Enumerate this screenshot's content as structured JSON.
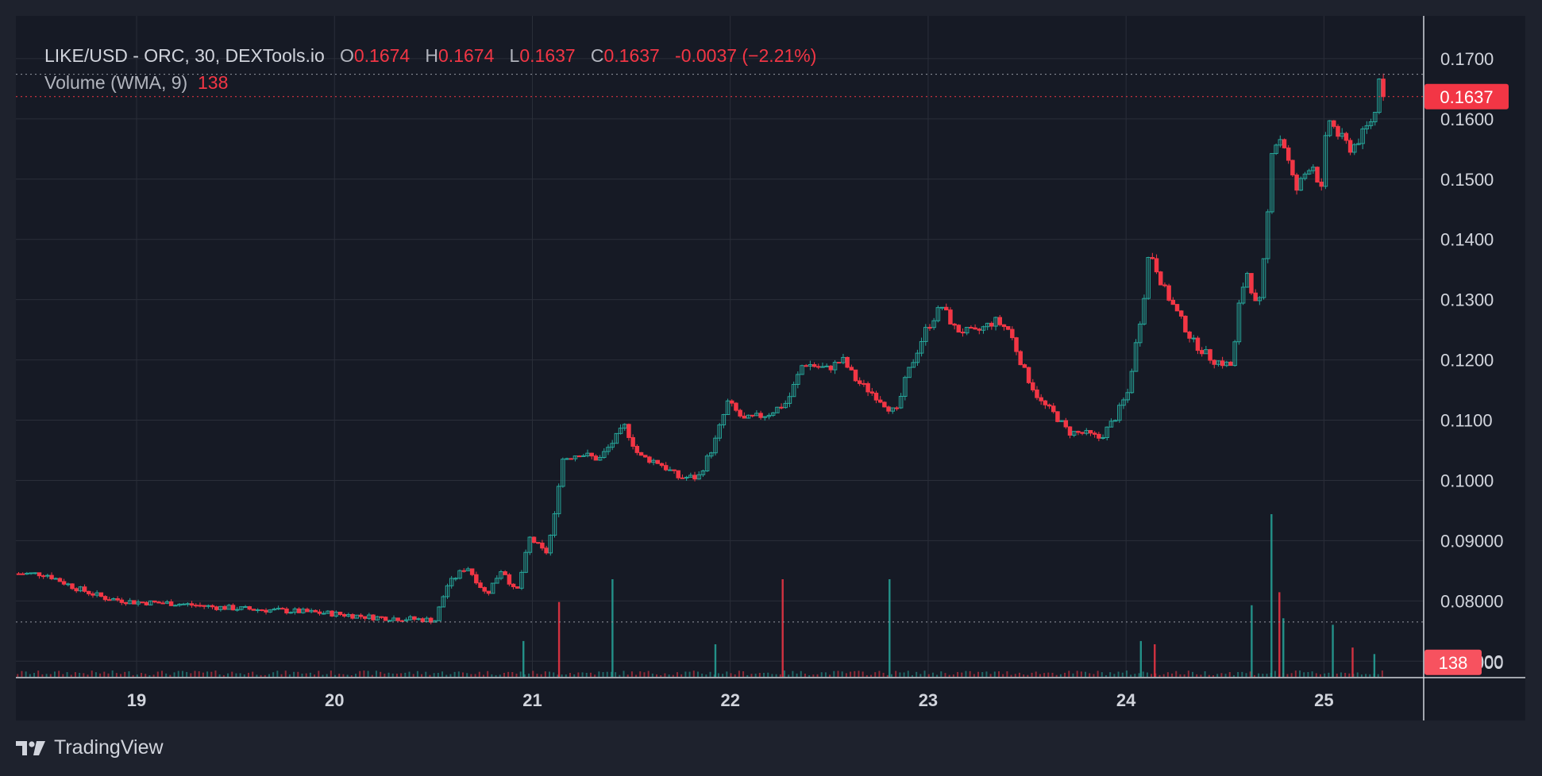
{
  "legend": {
    "symbol": "LIKE/USD - ORC, 30, DEXTools.io",
    "o_label": "O",
    "o_value": "0.1674",
    "h_label": "H",
    "h_value": "0.1674",
    "l_label": "L",
    "l_value": "0.1637",
    "c_label": "C",
    "c_value": "0.1637",
    "change": "-0.0037 (−2.21%)",
    "volume_label": "Volume (WMA, 9)",
    "volume_value": "138"
  },
  "brand": {
    "name": "TradingView",
    "icon": "tradingview-logo-icon"
  },
  "colors": {
    "background": "#161a25",
    "page": "#1e222d",
    "grid": "#2a2e39",
    "up": "#26a69a",
    "down": "#f23645",
    "text": "#b2b5be"
  },
  "chart_data": {
    "type": "candlestick",
    "price_axis": {
      "ticks": [
        "0.1700",
        "0.1600",
        "0.1500",
        "0.1400",
        "0.1300",
        "0.1200",
        "0.1100",
        "0.1000",
        "0.09000",
        "0.08000",
        "0.07000"
      ],
      "tick_values": [
        0.17,
        0.16,
        0.15,
        0.14,
        0.13,
        0.12,
        0.11,
        0.1,
        0.09,
        0.08,
        0.07
      ],
      "range": [
        0.0674,
        0.1771
      ]
    },
    "time_axis": {
      "labels": [
        "19",
        "20",
        "21",
        "22",
        "23",
        "24",
        "25"
      ],
      "day_values": [
        19,
        20,
        21,
        22,
        23,
        24,
        25
      ],
      "range": [
        18.39,
        25.5
      ]
    },
    "last_price_label": "0.1637",
    "last_price": 0.1637,
    "high_line": 0.1674,
    "low_line": 0.0765,
    "volume_label": "138",
    "volume_axis_partial_tick": "000",
    "price_path": [
      [
        18.4,
        0.0845
      ],
      [
        18.55,
        0.0845
      ],
      [
        18.7,
        0.0822
      ],
      [
        18.85,
        0.0805
      ],
      [
        19.0,
        0.0798
      ],
      [
        19.2,
        0.0796
      ],
      [
        19.4,
        0.079
      ],
      [
        19.6,
        0.0786
      ],
      [
        19.8,
        0.0783
      ],
      [
        20.0,
        0.0779
      ],
      [
        20.2,
        0.0773
      ],
      [
        20.4,
        0.077
      ],
      [
        20.52,
        0.0768
      ],
      [
        20.58,
        0.0825
      ],
      [
        20.68,
        0.0858
      ],
      [
        20.78,
        0.081
      ],
      [
        20.86,
        0.0855
      ],
      [
        20.93,
        0.081
      ],
      [
        21.0,
        0.0905
      ],
      [
        21.08,
        0.0878
      ],
      [
        21.12,
        0.093
      ],
      [
        21.16,
        0.1035
      ],
      [
        21.25,
        0.1045
      ],
      [
        21.35,
        0.1035
      ],
      [
        21.48,
        0.109
      ],
      [
        21.55,
        0.104
      ],
      [
        21.65,
        0.103
      ],
      [
        21.75,
        0.1005
      ],
      [
        21.85,
        0.1005
      ],
      [
        21.93,
        0.106
      ],
      [
        22.0,
        0.113
      ],
      [
        22.08,
        0.11
      ],
      [
        22.2,
        0.111
      ],
      [
        22.3,
        0.113
      ],
      [
        22.38,
        0.1195
      ],
      [
        22.5,
        0.1185
      ],
      [
        22.58,
        0.12
      ],
      [
        22.65,
        0.1165
      ],
      [
        22.75,
        0.114
      ],
      [
        22.85,
        0.111
      ],
      [
        22.9,
        0.117
      ],
      [
        23.0,
        0.125
      ],
      [
        23.08,
        0.129
      ],
      [
        23.15,
        0.125
      ],
      [
        23.25,
        0.1245
      ],
      [
        23.35,
        0.1265
      ],
      [
        23.42,
        0.125
      ],
      [
        23.5,
        0.118
      ],
      [
        23.58,
        0.113
      ],
      [
        23.65,
        0.111
      ],
      [
        23.72,
        0.108
      ],
      [
        23.8,
        0.1078
      ],
      [
        23.88,
        0.107
      ],
      [
        23.95,
        0.11
      ],
      [
        24.02,
        0.1145
      ],
      [
        24.1,
        0.13
      ],
      [
        24.13,
        0.1385
      ],
      [
        24.2,
        0.132
      ],
      [
        24.25,
        0.129
      ],
      [
        24.35,
        0.123
      ],
      [
        24.45,
        0.12
      ],
      [
        24.5,
        0.1195
      ],
      [
        24.55,
        0.119
      ],
      [
        24.58,
        0.1285
      ],
      [
        24.62,
        0.135
      ],
      [
        24.68,
        0.1275
      ],
      [
        24.72,
        0.14
      ],
      [
        24.75,
        0.1555
      ],
      [
        24.8,
        0.157
      ],
      [
        24.87,
        0.148
      ],
      [
        24.95,
        0.153
      ],
      [
        25.0,
        0.148
      ],
      [
        25.03,
        0.1605
      ],
      [
        25.08,
        0.1575
      ],
      [
        25.15,
        0.155
      ],
      [
        25.22,
        0.158
      ],
      [
        25.27,
        0.161
      ],
      [
        25.29,
        0.1674
      ],
      [
        25.32,
        0.1637
      ]
    ],
    "volume_spikes": [
      [
        20.95,
        22
      ],
      [
        21.13,
        46
      ],
      [
        21.4,
        60
      ],
      [
        21.92,
        20
      ],
      [
        22.26,
        60
      ],
      [
        22.8,
        60
      ],
      [
        24.07,
        22
      ],
      [
        24.14,
        20
      ],
      [
        24.63,
        44
      ],
      [
        24.73,
        100
      ],
      [
        24.77,
        52
      ],
      [
        24.79,
        36
      ],
      [
        25.04,
        32
      ],
      [
        25.14,
        18
      ],
      [
        25.25,
        14
      ]
    ]
  }
}
